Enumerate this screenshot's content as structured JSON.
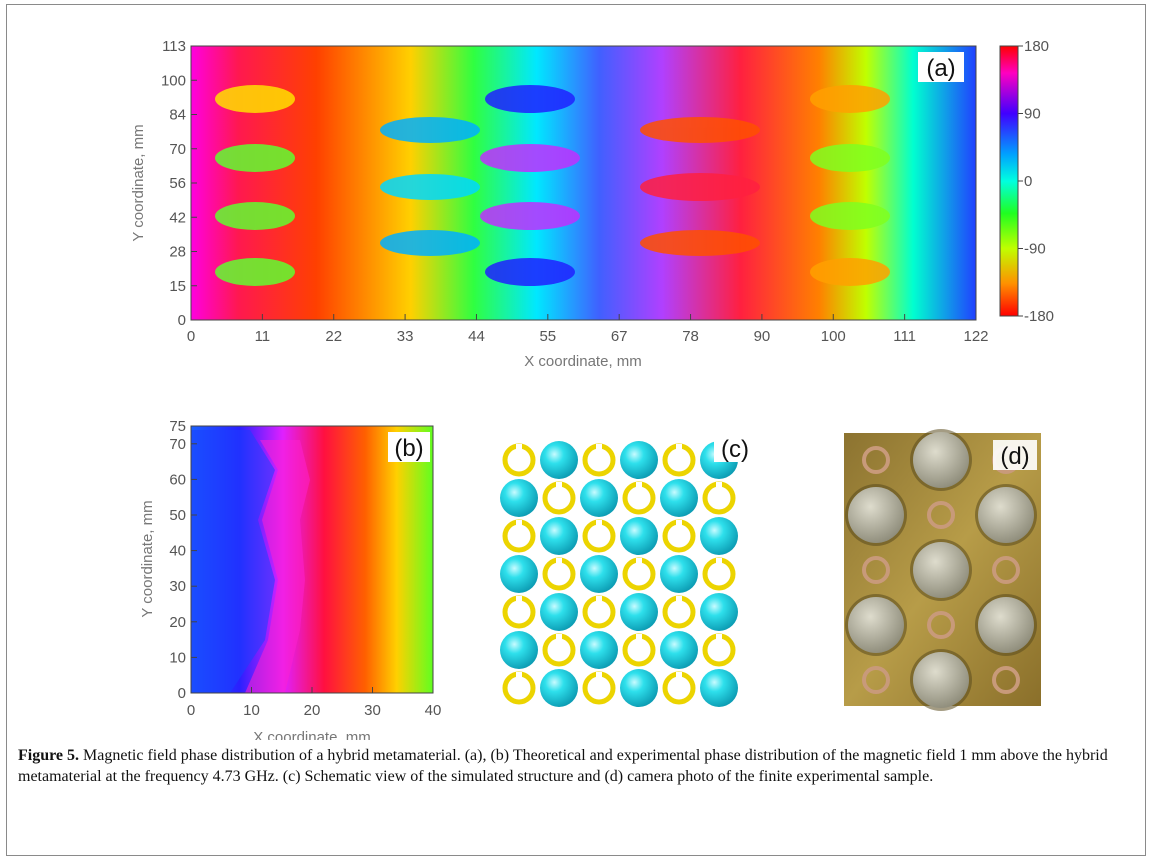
{
  "figure": {
    "panel_a": {
      "label": "(a)",
      "x_ticks": [
        "0",
        "11",
        "22",
        "33",
        "44",
        "55",
        "67",
        "78",
        "90",
        "100",
        "111",
        "122"
      ],
      "y_ticks": [
        "0",
        "15",
        "28",
        "42",
        "56",
        "70",
        "84",
        "100",
        "113"
      ],
      "xlabel": "X coordinate, mm",
      "ylabel": "Y coordinate, mm",
      "colorbar_ticks": [
        "180",
        "90",
        "0",
        "-90",
        "-180"
      ]
    },
    "panel_b": {
      "label": "(b)",
      "x_ticks": [
        "0",
        "10",
        "20",
        "30",
        "40"
      ],
      "y_ticks": [
        "0",
        "10",
        "20",
        "30",
        "40",
        "50",
        "60",
        "70",
        "75"
      ],
      "xlabel": "X coordinate, mm",
      "ylabel": "Y coordinate, mm"
    },
    "panel_c": {
      "label": "(c)"
    },
    "panel_d": {
      "label": "(d)"
    }
  },
  "caption": {
    "lead": "Figure 5.",
    "text": " Magnetic field phase distribution of a hybrid metamaterial. (a), (b) Theoretical and experimental phase distribution of the magnetic field 1 mm above the hybrid metamaterial at the frequency 4.73 GHz. (c) Schematic view of the simulated structure and (d) camera photo of the finite experimental sample."
  },
  "colors": {
    "ring": "#ecd400",
    "sphere": "#1ec8d8",
    "board": "#a98b3a"
  }
}
